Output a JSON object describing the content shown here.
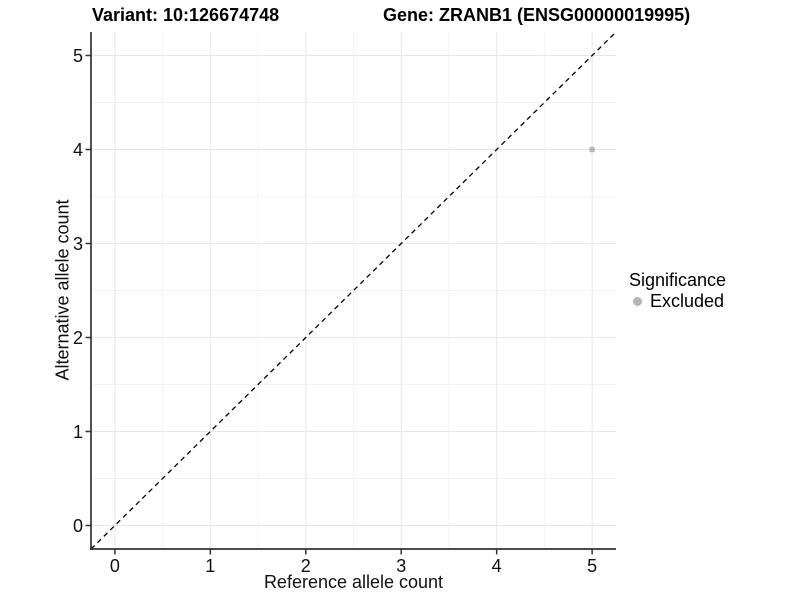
{
  "titles": {
    "variant": "Variant: 10:126674748",
    "gene": "Gene: ZRANB1 (ENSG00000019995)"
  },
  "axes": {
    "x": {
      "label": "Reference allele count"
    },
    "y": {
      "label": "Alternative allele count"
    }
  },
  "legend": {
    "title": "Significance",
    "items": [
      {
        "label": "Excluded",
        "color": "#b5b5b5"
      }
    ]
  },
  "colors": {
    "background": "#ffffff",
    "grid_major": "#e7e7e7",
    "grid_minor": "#f3f3f3",
    "axis_line": "#333333",
    "reference_line": "#000000",
    "point_excluded": "#b5b5b5"
  },
  "chart_data": {
    "type": "scatter",
    "title": "Variant: 10:126674748   Gene: ZRANB1 (ENSG00000019995)",
    "xlabel": "Reference allele count",
    "ylabel": "Alternative allele count",
    "xlim": [
      -0.25,
      5.25
    ],
    "ylim": [
      -0.25,
      5.25
    ],
    "x_ticks": [
      0,
      1,
      2,
      3,
      4,
      5
    ],
    "y_ticks": [
      0,
      1,
      2,
      3,
      4,
      5
    ],
    "grid": true,
    "legend_position": "right",
    "legend_title": "Significance",
    "series": [
      {
        "name": "Excluded",
        "color": "#b5b5b5",
        "points": [
          {
            "x": 5,
            "y": 4
          }
        ]
      }
    ],
    "reference_line": {
      "type": "diagonal",
      "equation": "y = x",
      "style": "dashed",
      "color": "#000000"
    }
  }
}
